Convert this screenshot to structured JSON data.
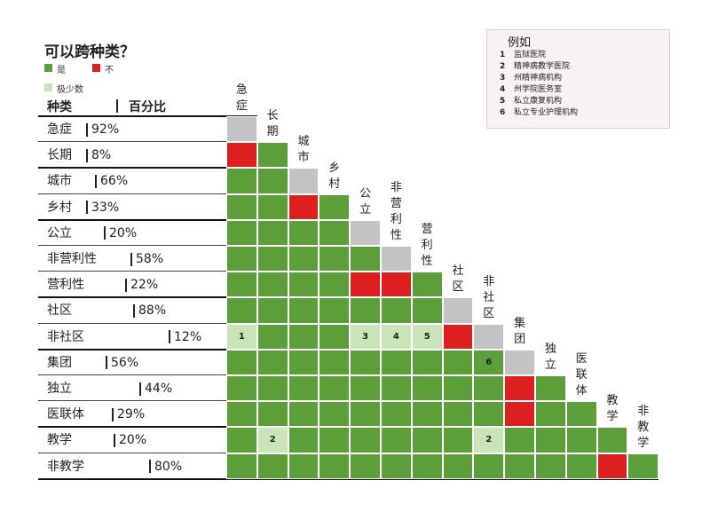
{
  "title": "可以跨种类？",
  "legend": [
    {
      "label": "是",
      "color": "#5c9e3a"
    },
    {
      "label": "不",
      "color": "#dd1f1f"
    },
    {
      "label": "极少数",
      "color": "#c8e4b8"
    }
  ],
  "header": {
    "col1": "种类",
    "col2": "百分比"
  },
  "rows": [
    {
      "name": "急症",
      "pct": "92%"
    },
    {
      "name": "长期",
      "pct": "8%"
    },
    {
      "name": "城市",
      "pct": "66%"
    },
    {
      "name": "乡村",
      "pct": "33%"
    },
    {
      "name": "公立",
      "pct": "20%"
    },
    {
      "name": "非营利性",
      "pct": "58%"
    },
    {
      "name": "营利性",
      "pct": "22%"
    },
    {
      "name": "社区",
      "pct": "88%"
    },
    {
      "name": "非社区",
      "pct": "12%"
    },
    {
      "name": "集团",
      "pct": "56%"
    },
    {
      "name": "独立",
      "pct": "44%"
    },
    {
      "name": "医联体",
      "pct": "29%"
    },
    {
      "name": "教学",
      "pct": "20%"
    },
    {
      "name": "非教学",
      "pct": "80%"
    }
  ],
  "columns": [
    "急症",
    "长期",
    "城市",
    "乡村",
    "公立",
    "非营利性",
    "营利性",
    "社区",
    "非社区",
    "集团",
    "独立",
    "医联体",
    "教学",
    "非教学"
  ],
  "matrix_values": [
    "D",
    "NG",
    "GGD",
    "GGNG",
    "GGGGD",
    "GGGGGD",
    "GGGGNNG",
    "GGGGGGGD",
    "1GGG345ND",
    "GGGGGGGGGD",
    "GGGGGGGGGNG",
    "GGGGGGGGGNGG",
    "G2GGGGGG2GGGG",
    "GGGGGGGGGGGGNG"
  ],
  "cell_labels": {
    "8-0": "1",
    "8-4": "3",
    "8-5": "4",
    "8-6": "5",
    "9-8": "6",
    "12-1": "2",
    "12-8": "2"
  },
  "colors": {
    "yes": "#5c9e3a",
    "no": "#dd1f1f",
    "rare": "#c8e4b8",
    "diag": "#c3c3c3"
  },
  "examples": {
    "title": "例如",
    "items": [
      {
        "num": "1",
        "text": "监狱医院"
      },
      {
        "num": "2",
        "text": "精神病教学医院"
      },
      {
        "num": "3",
        "text": "州精神病机构"
      },
      {
        "num": "4",
        "text": "州学院医务室"
      },
      {
        "num": "5",
        "text": "私立康复机构"
      },
      {
        "num": "6",
        "text": "私立专业护理机构"
      }
    ]
  }
}
